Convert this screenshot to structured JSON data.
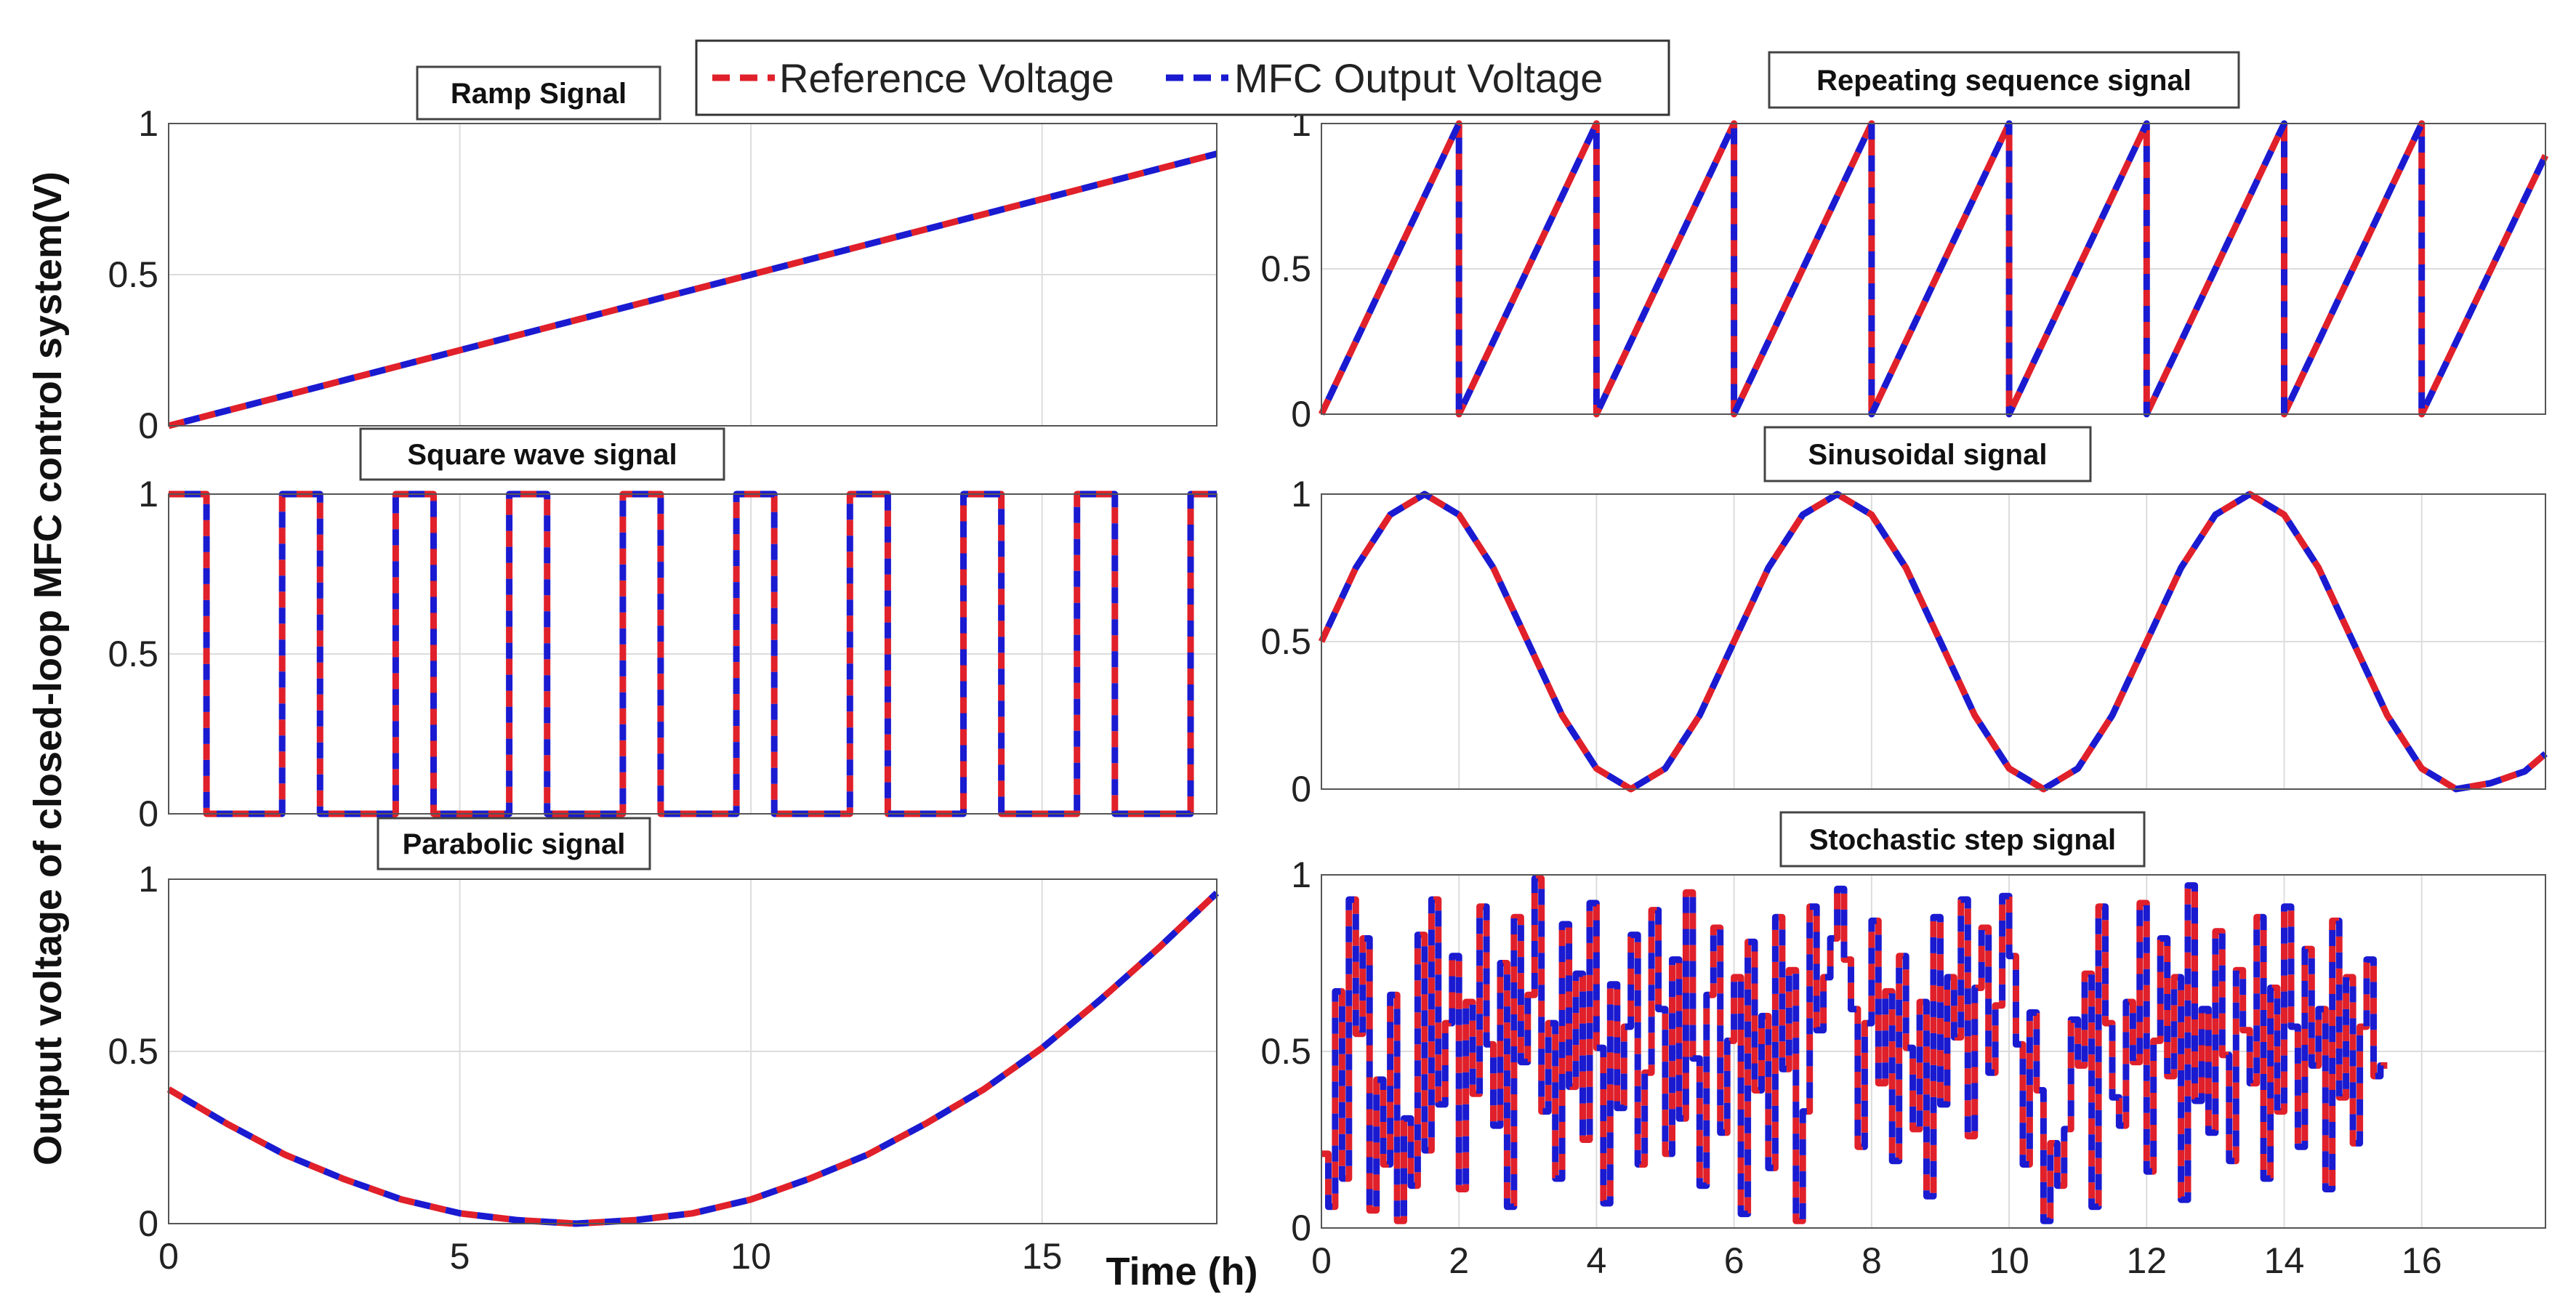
{
  "figure": {
    "ylabel": "Output voltage of closed-loop MFC control system(V)",
    "xlabel": "Time (h)"
  },
  "legend": {
    "items": [
      {
        "label": "Reference Voltage",
        "color": "#e0202a"
      },
      {
        "label": "MFC Output Voltage",
        "color": "#1a1ad0"
      }
    ]
  },
  "chart_data": [
    {
      "id": "ramp",
      "type": "line",
      "title": "Ramp Signal",
      "xlim": [
        0,
        18
      ],
      "ylim": [
        0,
        1
      ],
      "xticks": [],
      "yticks": [
        0,
        0.5,
        1
      ],
      "ytick_labels": [
        "0",
        "0.5",
        "1"
      ],
      "grid": true,
      "series": [
        {
          "name": "Reference Voltage",
          "x": [
            0,
            18
          ],
          "y": [
            0,
            0.9
          ]
        },
        {
          "name": "MFC Output Voltage",
          "x": [
            0,
            18
          ],
          "y": [
            0,
            0.9
          ]
        }
      ]
    },
    {
      "id": "square",
      "type": "line",
      "title": "Square wave signal",
      "xlim": [
        0,
        18
      ],
      "ylim": [
        0,
        1
      ],
      "xticks": [],
      "yticks": [
        0,
        0.5,
        1
      ],
      "ytick_labels": [
        "0",
        "0.5",
        "1"
      ],
      "grid": true,
      "series": [
        {
          "name": "Reference Voltage",
          "x": [
            0,
            0.65,
            0.65,
            1.95,
            1.95,
            2.6,
            2.6,
            3.9,
            3.9,
            4.55,
            4.55,
            5.85,
            5.85,
            6.5,
            6.5,
            7.8,
            7.8,
            8.45,
            8.45,
            9.75,
            9.75,
            10.4,
            10.4,
            11.7,
            11.7,
            12.35,
            12.35,
            13.65,
            13.65,
            14.3,
            14.3,
            15.6,
            15.6,
            16.25,
            16.25,
            17.55,
            17.55,
            18
          ],
          "y": [
            1,
            1,
            0,
            0,
            1,
            1,
            0,
            0,
            1,
            1,
            0,
            0,
            1,
            1,
            0,
            0,
            1,
            1,
            0,
            0,
            1,
            1,
            0,
            0,
            1,
            1,
            0,
            0,
            1,
            1,
            0,
            0,
            1,
            1,
            0,
            0,
            1,
            1
          ]
        },
        {
          "name": "MFC Output Voltage",
          "x": [
            0,
            0.65,
            0.65,
            1.95,
            1.95,
            2.6,
            2.6,
            3.9,
            3.9,
            4.55,
            4.55,
            5.85,
            5.85,
            6.5,
            6.5,
            7.8,
            7.8,
            8.45,
            8.45,
            9.75,
            9.75,
            10.4,
            10.4,
            11.7,
            11.7,
            12.35,
            12.35,
            13.65,
            13.65,
            14.3,
            14.3,
            15.6,
            15.6,
            16.25,
            16.25,
            17.55,
            17.55,
            18
          ],
          "y": [
            1,
            1,
            0,
            0,
            1,
            1,
            0,
            0,
            1,
            1,
            0,
            0,
            1,
            1,
            0,
            0,
            1,
            1,
            0,
            0,
            1,
            1,
            0,
            0,
            1,
            1,
            0,
            0,
            1,
            1,
            0,
            0,
            1,
            1,
            0,
            0,
            1,
            1
          ]
        }
      ]
    },
    {
      "id": "parabolic",
      "type": "line",
      "title": "Parabolic signal",
      "xlim": [
        0,
        18
      ],
      "ylim": [
        0,
        1
      ],
      "xticks": [
        0,
        5,
        10,
        15
      ],
      "xtick_labels": [
        "0",
        "5",
        "10",
        "15"
      ],
      "yticks": [
        0,
        0.5,
        1
      ],
      "ytick_labels": [
        "0",
        "0.5",
        "1"
      ],
      "grid": true,
      "series": [
        {
          "name": "Reference Voltage",
          "x": [
            0,
            1,
            2,
            3,
            4,
            5,
            6,
            7,
            8,
            9,
            10,
            11,
            12,
            13,
            14,
            15,
            16,
            17,
            18
          ],
          "y": [
            0.39,
            0.29,
            0.2,
            0.13,
            0.07,
            0.03,
            0.01,
            0.0,
            0.01,
            0.03,
            0.07,
            0.13,
            0.2,
            0.29,
            0.39,
            0.51,
            0.65,
            0.8,
            0.96
          ]
        },
        {
          "name": "MFC Output Voltage",
          "x": [
            0,
            1,
            2,
            3,
            4,
            5,
            6,
            7,
            8,
            9,
            10,
            11,
            12,
            13,
            14,
            15,
            16,
            17,
            18
          ],
          "y": [
            0.39,
            0.29,
            0.2,
            0.13,
            0.07,
            0.03,
            0.01,
            0.0,
            0.01,
            0.03,
            0.07,
            0.13,
            0.2,
            0.29,
            0.39,
            0.51,
            0.65,
            0.8,
            0.96
          ]
        }
      ]
    },
    {
      "id": "repeating",
      "type": "line",
      "title": "Repeating sequence signal",
      "xlim": [
        0,
        17.8
      ],
      "ylim": [
        0,
        1
      ],
      "xticks": [],
      "yticks": [
        0,
        0.5,
        1
      ],
      "ytick_labels": [
        "0",
        "0.5",
        "1"
      ],
      "grid": true,
      "series": [
        {
          "name": "Reference Voltage",
          "x": [
            0,
            2,
            2,
            4,
            4,
            6,
            6,
            8,
            8,
            10,
            10,
            12,
            12,
            14,
            14,
            16,
            16,
            17.8
          ],
          "y": [
            0,
            1,
            0,
            1,
            0,
            1,
            0,
            1,
            0,
            1,
            0,
            1,
            0,
            1,
            0,
            1,
            0,
            0.89
          ]
        },
        {
          "name": "MFC Output Voltage",
          "x": [
            0,
            2,
            2,
            4,
            4,
            6,
            6,
            8,
            8,
            10,
            10,
            12,
            12,
            14,
            14,
            16,
            16,
            17.8
          ],
          "y": [
            0,
            1,
            0,
            1,
            0,
            1,
            0,
            1,
            0,
            1,
            0,
            1,
            0,
            1,
            0,
            1,
            0,
            0.89
          ]
        }
      ]
    },
    {
      "id": "sinusoidal",
      "type": "line",
      "title": "Sinusoidal signal",
      "xlim": [
        0,
        17.8
      ],
      "ylim": [
        0,
        1
      ],
      "xticks": [],
      "yticks": [
        0,
        0.5,
        1
      ],
      "ytick_labels": [
        "0",
        "0.5",
        "1"
      ],
      "grid": true,
      "series": [
        {
          "name": "Reference Voltage",
          "x": [
            0,
            0.5,
            1,
            1.5,
            2,
            2.5,
            3,
            3.5,
            4,
            4.5,
            5,
            5.5,
            6,
            6.5,
            7,
            7.5,
            8,
            8.5,
            9,
            9.5,
            10,
            10.5,
            11,
            11.5,
            12,
            12.5,
            13,
            13.5,
            14,
            14.5,
            15,
            15.5,
            16,
            16.5,
            17,
            17.5,
            17.8
          ],
          "y": [
            0.5,
            0.75,
            0.93,
            1.0,
            0.93,
            0.75,
            0.5,
            0.25,
            0.07,
            0.0,
            0.07,
            0.25,
            0.5,
            0.75,
            0.93,
            1.0,
            0.93,
            0.75,
            0.5,
            0.25,
            0.07,
            0.0,
            0.07,
            0.25,
            0.5,
            0.75,
            0.93,
            1.0,
            0.93,
            0.75,
            0.5,
            0.25,
            0.07,
            0.0,
            0.02,
            0.06,
            0.12
          ]
        },
        {
          "name": "MFC Output Voltage",
          "x": [
            0,
            0.5,
            1,
            1.5,
            2,
            2.5,
            3,
            3.5,
            4,
            4.5,
            5,
            5.5,
            6,
            6.5,
            7,
            7.5,
            8,
            8.5,
            9,
            9.5,
            10,
            10.5,
            11,
            11.5,
            12,
            12.5,
            13,
            13.5,
            14,
            14.5,
            15,
            15.5,
            16,
            16.5,
            17,
            17.5,
            17.8
          ],
          "y": [
            0.5,
            0.75,
            0.93,
            1.0,
            0.93,
            0.75,
            0.5,
            0.25,
            0.07,
            0.0,
            0.07,
            0.25,
            0.5,
            0.75,
            0.93,
            1.0,
            0.93,
            0.75,
            0.5,
            0.25,
            0.07,
            0.0,
            0.07,
            0.25,
            0.5,
            0.75,
            0.93,
            1.0,
            0.93,
            0.75,
            0.5,
            0.25,
            0.07,
            0.0,
            0.02,
            0.06,
            0.12
          ]
        }
      ]
    },
    {
      "id": "stochastic",
      "type": "line",
      "title": "Stochastic step signal",
      "xlim": [
        0,
        17.8
      ],
      "ylim": [
        0,
        1
      ],
      "xticks": [
        0,
        2,
        4,
        6,
        8,
        10,
        12,
        14,
        16
      ],
      "xtick_labels": [
        "0",
        "2",
        "4",
        "6",
        "8",
        "10",
        "12",
        "14",
        "16"
      ],
      "yticks": [
        0,
        0.5,
        1
      ],
      "ytick_labels": [
        "0",
        "0.5",
        "1"
      ],
      "grid": true,
      "step": 0.1,
      "series": [
        {
          "name": "Reference Voltage",
          "y": [
            0.21,
            0.06,
            0.67,
            0.14,
            0.93,
            0.55,
            0.82,
            0.05,
            0.42,
            0.18,
            0.66,
            0.02,
            0.31,
            0.12,
            0.83,
            0.22,
            0.93,
            0.35,
            0.58,
            0.77,
            0.11,
            0.64,
            0.38,
            0.91,
            0.52,
            0.29,
            0.75,
            0.06,
            0.88,
            0.47,
            0.66,
            0.99,
            0.33,
            0.58,
            0.14,
            0.86,
            0.4,
            0.72,
            0.25,
            0.92,
            0.51,
            0.07,
            0.69,
            0.34,
            0.57,
            0.83,
            0.18,
            0.44,
            0.9,
            0.62,
            0.21,
            0.76,
            0.31,
            0.95,
            0.48,
            0.12,
            0.66,
            0.85,
            0.27,
            0.53,
            0.71,
            0.04,
            0.81,
            0.39,
            0.6,
            0.17,
            0.88,
            0.45,
            0.73,
            0.02,
            0.33,
            0.91,
            0.56,
            0.71,
            0.82,
            0.96,
            0.76,
            0.62,
            0.23,
            0.58,
            0.87,
            0.41,
            0.67,
            0.19,
            0.77,
            0.51,
            0.28,
            0.64,
            0.09,
            0.88,
            0.35,
            0.71,
            0.54,
            0.93,
            0.26,
            0.68,
            0.85,
            0.44,
            0.63,
            0.94,
            0.77,
            0.52,
            0.18,
            0.61,
            0.39,
            0.02,
            0.24,
            0.12,
            0.28,
            0.59,
            0.46,
            0.72,
            0.06,
            0.91,
            0.58,
            0.37,
            0.29,
            0.64,
            0.47,
            0.92,
            0.16,
            0.53,
            0.82,
            0.43,
            0.71,
            0.08,
            0.97,
            0.36,
            0.62,
            0.27,
            0.84,
            0.49,
            0.19,
            0.73,
            0.56,
            0.41,
            0.88,
            0.14,
            0.68,
            0.33,
            0.91,
            0.57,
            0.23,
            0.79,
            0.46,
            0.62,
            0.11,
            0.87,
            0.37,
            0.71,
            0.24,
            0.57,
            0.76,
            0.43,
            0.46
          ]
        },
        {
          "name": "MFC Output Voltage",
          "y": [
            0.21,
            0.06,
            0.67,
            0.14,
            0.93,
            0.55,
            0.82,
            0.05,
            0.42,
            0.18,
            0.66,
            0.02,
            0.31,
            0.12,
            0.83,
            0.22,
            0.93,
            0.35,
            0.58,
            0.77,
            0.11,
            0.64,
            0.38,
            0.91,
            0.52,
            0.29,
            0.75,
            0.06,
            0.88,
            0.47,
            0.66,
            0.99,
            0.33,
            0.58,
            0.14,
            0.86,
            0.4,
            0.72,
            0.25,
            0.92,
            0.51,
            0.07,
            0.69,
            0.34,
            0.57,
            0.83,
            0.18,
            0.44,
            0.9,
            0.62,
            0.21,
            0.76,
            0.31,
            0.95,
            0.48,
            0.12,
            0.66,
            0.85,
            0.27,
            0.53,
            0.71,
            0.04,
            0.81,
            0.39,
            0.6,
            0.17,
            0.88,
            0.45,
            0.73,
            0.02,
            0.33,
            0.91,
            0.56,
            0.71,
            0.82,
            0.96,
            0.76,
            0.62,
            0.23,
            0.58,
            0.87,
            0.41,
            0.67,
            0.19,
            0.77,
            0.51,
            0.28,
            0.64,
            0.09,
            0.88,
            0.35,
            0.71,
            0.54,
            0.93,
            0.26,
            0.68,
            0.85,
            0.44,
            0.63,
            0.94,
            0.77,
            0.52,
            0.18,
            0.61,
            0.39,
            0.02,
            0.24,
            0.12,
            0.28,
            0.59,
            0.46,
            0.72,
            0.06,
            0.91,
            0.58,
            0.37,
            0.29,
            0.64,
            0.47,
            0.92,
            0.16,
            0.53,
            0.82,
            0.43,
            0.71,
            0.08,
            0.97,
            0.36,
            0.62,
            0.27,
            0.84,
            0.49,
            0.19,
            0.73,
            0.56,
            0.41,
            0.88,
            0.14,
            0.68,
            0.33,
            0.91,
            0.57,
            0.23,
            0.79,
            0.46,
            0.62,
            0.11,
            0.87,
            0.37,
            0.71,
            0.24,
            0.57,
            0.76,
            0.43,
            0.46
          ]
        }
      ]
    }
  ]
}
